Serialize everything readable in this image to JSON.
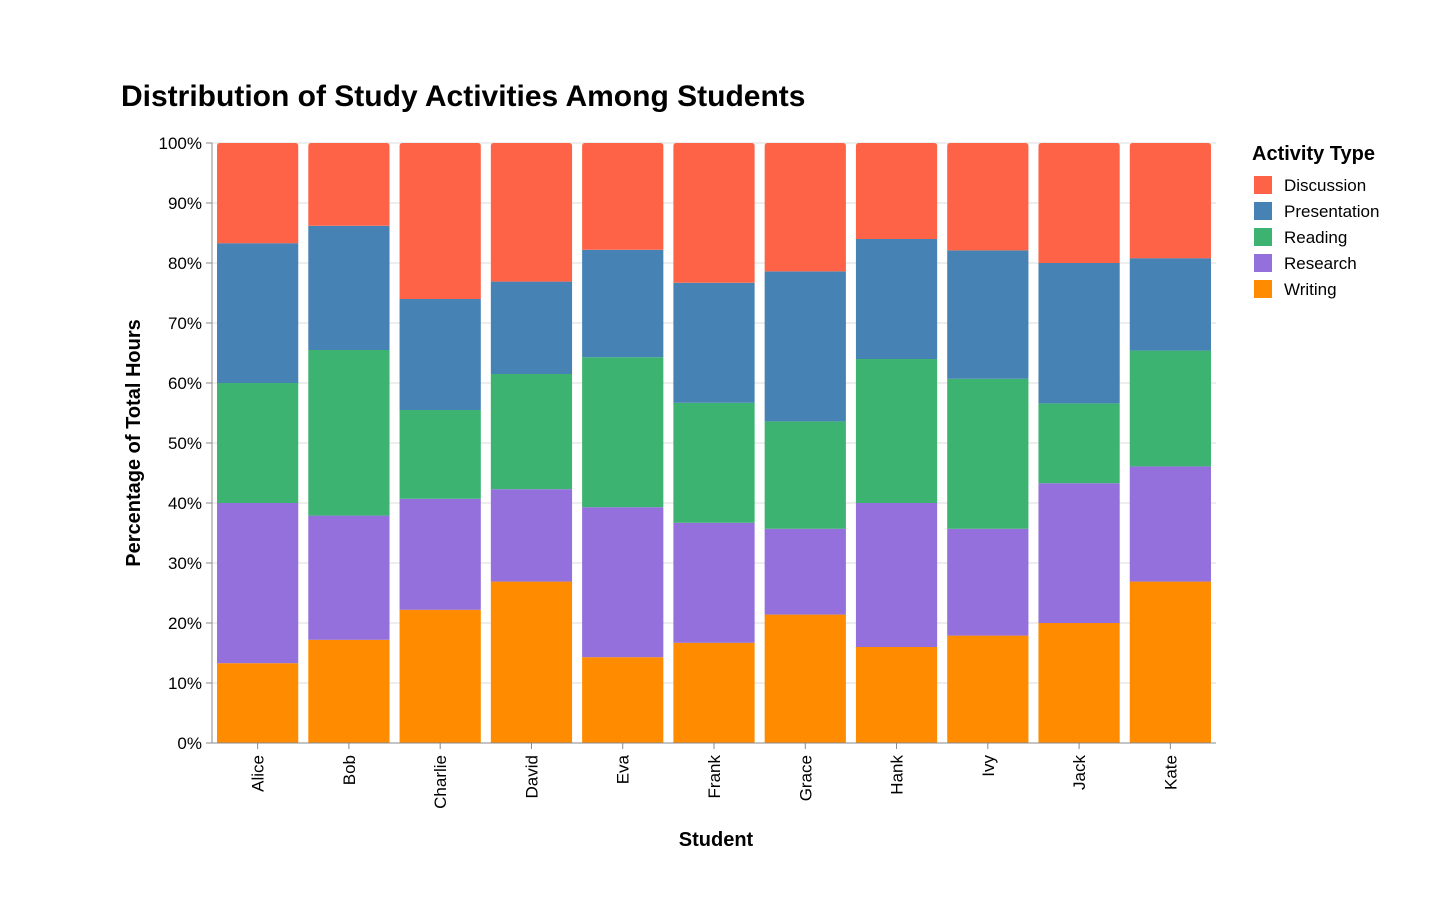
{
  "chart_data": {
    "type": "bar",
    "stacked": "normalize",
    "title": "Distribution of Study Activities Among Students",
    "xlabel": "Student",
    "ylabel": "Percentage of Total Hours",
    "ylim": [
      0,
      1
    ],
    "yticks": [
      "0%",
      "10%",
      "20%",
      "30%",
      "40%",
      "50%",
      "60%",
      "70%",
      "80%",
      "90%",
      "100%"
    ],
    "grid": true,
    "legend": {
      "title": "Activity Type",
      "position": "right"
    },
    "categories": [
      "Alice",
      "Bob",
      "Charlie",
      "David",
      "Eva",
      "Frank",
      "Grace",
      "Hank",
      "Ivy",
      "Jack",
      "Kate"
    ],
    "series": [
      {
        "name": "Writing",
        "color": "#ff8c00",
        "values": [
          0.133,
          0.172,
          0.222,
          0.269,
          0.143,
          0.167,
          0.214,
          0.16,
          0.179,
          0.2,
          0.269
        ]
      },
      {
        "name": "Research",
        "color": "#9370db",
        "values": [
          0.267,
          0.207,
          0.185,
          0.154,
          0.25,
          0.2,
          0.143,
          0.24,
          0.178,
          0.233,
          0.192
        ]
      },
      {
        "name": "Reading",
        "color": "#3cb371",
        "values": [
          0.2,
          0.276,
          0.148,
          0.192,
          0.25,
          0.2,
          0.179,
          0.24,
          0.25,
          0.133,
          0.193
        ]
      },
      {
        "name": "Presentation",
        "color": "#4682b4",
        "values": [
          0.233,
          0.207,
          0.185,
          0.154,
          0.179,
          0.2,
          0.25,
          0.2,
          0.214,
          0.234,
          0.154
        ]
      },
      {
        "name": "Discussion",
        "color": "#ff6347",
        "values": [
          0.167,
          0.138,
          0.26,
          0.231,
          0.178,
          0.233,
          0.214,
          0.16,
          0.179,
          0.2,
          0.192
        ]
      }
    ],
    "legend_order": [
      "Discussion",
      "Presentation",
      "Reading",
      "Research",
      "Writing"
    ]
  }
}
